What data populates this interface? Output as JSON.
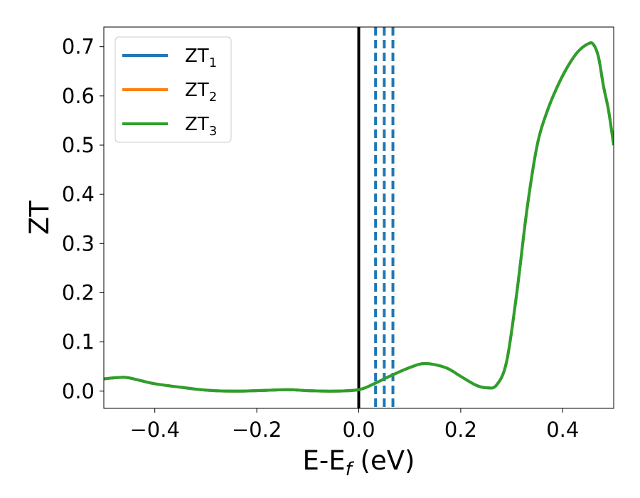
{
  "chart_data": {
    "type": "line",
    "xlabel": "E-E_f (eV)",
    "ylabel": "ZT",
    "xlim": [
      -0.5,
      0.5
    ],
    "ylim": [
      -0.035,
      0.74
    ],
    "xticks": [
      -0.4,
      -0.2,
      0.0,
      0.2,
      0.4
    ],
    "xtick_labels": [
      "−0.4",
      "−0.2",
      "0.0",
      "0.2",
      "0.4"
    ],
    "yticks": [
      0.0,
      0.1,
      0.2,
      0.3,
      0.4,
      0.5,
      0.6,
      0.7
    ],
    "ytick_labels": [
      "0.0",
      "0.1",
      "0.2",
      "0.3",
      "0.4",
      "0.5",
      "0.6",
      "0.7"
    ],
    "legend_position": "upper-left",
    "series": [
      {
        "name": "ZT_1",
        "label_main": "ZT",
        "label_sub": "1",
        "color": "#1f77b4",
        "x": [
          -0.5,
          -0.46,
          -0.43,
          -0.4,
          -0.35,
          -0.3,
          -0.25,
          -0.2,
          -0.14,
          -0.1,
          -0.05,
          0.0,
          0.03,
          0.06,
          0.1,
          0.13,
          0.17,
          0.2,
          0.23,
          0.25,
          0.27,
          0.29,
          0.31,
          0.33,
          0.35,
          0.37,
          0.39,
          0.41,
          0.43,
          0.45,
          0.46,
          0.47,
          0.48,
          0.49,
          0.5
        ],
        "y": [
          0.025,
          0.028,
          0.022,
          0.015,
          0.008,
          0.002,
          0.0,
          0.001,
          0.003,
          0.001,
          0.0,
          0.003,
          0.015,
          0.03,
          0.048,
          0.056,
          0.048,
          0.03,
          0.012,
          0.007,
          0.012,
          0.06,
          0.2,
          0.37,
          0.5,
          0.57,
          0.62,
          0.66,
          0.69,
          0.706,
          0.705,
          0.68,
          0.62,
          0.57,
          0.5
        ]
      },
      {
        "name": "ZT_2",
        "label_main": "ZT",
        "label_sub": "2",
        "color": "#ff7f0e",
        "x": [
          -0.5,
          -0.46,
          -0.43,
          -0.4,
          -0.35,
          -0.3,
          -0.25,
          -0.2,
          -0.14,
          -0.1,
          -0.05,
          0.0,
          0.03,
          0.06,
          0.1,
          0.13,
          0.17,
          0.2,
          0.23,
          0.25,
          0.27,
          0.29,
          0.31,
          0.33,
          0.35,
          0.37,
          0.39,
          0.41,
          0.43,
          0.45,
          0.46,
          0.47,
          0.48,
          0.49,
          0.5
        ],
        "y": [
          0.025,
          0.028,
          0.022,
          0.015,
          0.008,
          0.002,
          0.0,
          0.001,
          0.003,
          0.001,
          0.0,
          0.003,
          0.015,
          0.03,
          0.048,
          0.056,
          0.048,
          0.03,
          0.012,
          0.007,
          0.012,
          0.06,
          0.2,
          0.37,
          0.5,
          0.57,
          0.62,
          0.66,
          0.69,
          0.706,
          0.705,
          0.68,
          0.62,
          0.57,
          0.5
        ]
      },
      {
        "name": "ZT_3",
        "label_main": "ZT",
        "label_sub": "3",
        "color": "#2ca02c",
        "x": [
          -0.5,
          -0.46,
          -0.43,
          -0.4,
          -0.35,
          -0.3,
          -0.25,
          -0.2,
          -0.14,
          -0.1,
          -0.05,
          0.0,
          0.03,
          0.06,
          0.1,
          0.13,
          0.17,
          0.2,
          0.23,
          0.25,
          0.27,
          0.29,
          0.31,
          0.33,
          0.35,
          0.37,
          0.39,
          0.41,
          0.43,
          0.45,
          0.46,
          0.47,
          0.48,
          0.49,
          0.5
        ],
        "y": [
          0.025,
          0.028,
          0.022,
          0.015,
          0.008,
          0.002,
          0.0,
          0.001,
          0.003,
          0.001,
          0.0,
          0.003,
          0.015,
          0.03,
          0.048,
          0.056,
          0.048,
          0.03,
          0.012,
          0.007,
          0.012,
          0.06,
          0.2,
          0.37,
          0.5,
          0.57,
          0.62,
          0.66,
          0.69,
          0.706,
          0.705,
          0.68,
          0.62,
          0.57,
          0.5
        ]
      }
    ],
    "vertical_lines": [
      {
        "x": 0.0,
        "style": "solid",
        "color": "#000000"
      },
      {
        "x": 0.033,
        "style": "dashed",
        "color": "#1f77b4"
      },
      {
        "x": 0.05,
        "style": "dashed",
        "color": "#1f77b4"
      },
      {
        "x": 0.067,
        "style": "dashed",
        "color": "#1f77b4"
      }
    ]
  }
}
